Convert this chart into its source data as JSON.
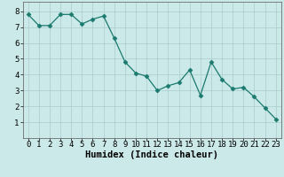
{
  "title": "",
  "xlabel": "Humidex (Indice chaleur)",
  "ylabel": "",
  "x": [
    0,
    1,
    2,
    3,
    4,
    5,
    6,
    7,
    8,
    9,
    10,
    11,
    12,
    13,
    14,
    15,
    16,
    17,
    18,
    19,
    20,
    21,
    22,
    23
  ],
  "y": [
    7.8,
    7.1,
    7.1,
    7.8,
    7.8,
    7.2,
    7.5,
    7.7,
    6.3,
    4.8,
    4.1,
    3.9,
    3.0,
    3.3,
    3.5,
    4.3,
    2.7,
    4.8,
    3.7,
    3.1,
    3.2,
    2.6,
    1.9,
    1.2
  ],
  "line_color": "#1a7a6e",
  "marker": "D",
  "marker_size": 2.5,
  "bg_color": "#cce9e9",
  "grid_color": "#aacccc",
  "xlim": [
    -0.5,
    23.5
  ],
  "ylim": [
    0,
    8.6
  ],
  "yticks": [
    1,
    2,
    3,
    4,
    5,
    6,
    7,
    8
  ],
  "xticks": [
    0,
    1,
    2,
    3,
    4,
    5,
    6,
    7,
    8,
    9,
    10,
    11,
    12,
    13,
    14,
    15,
    16,
    17,
    18,
    19,
    20,
    21,
    22,
    23
  ],
  "xlabel_fontsize": 7.5,
  "tick_fontsize": 6.5
}
